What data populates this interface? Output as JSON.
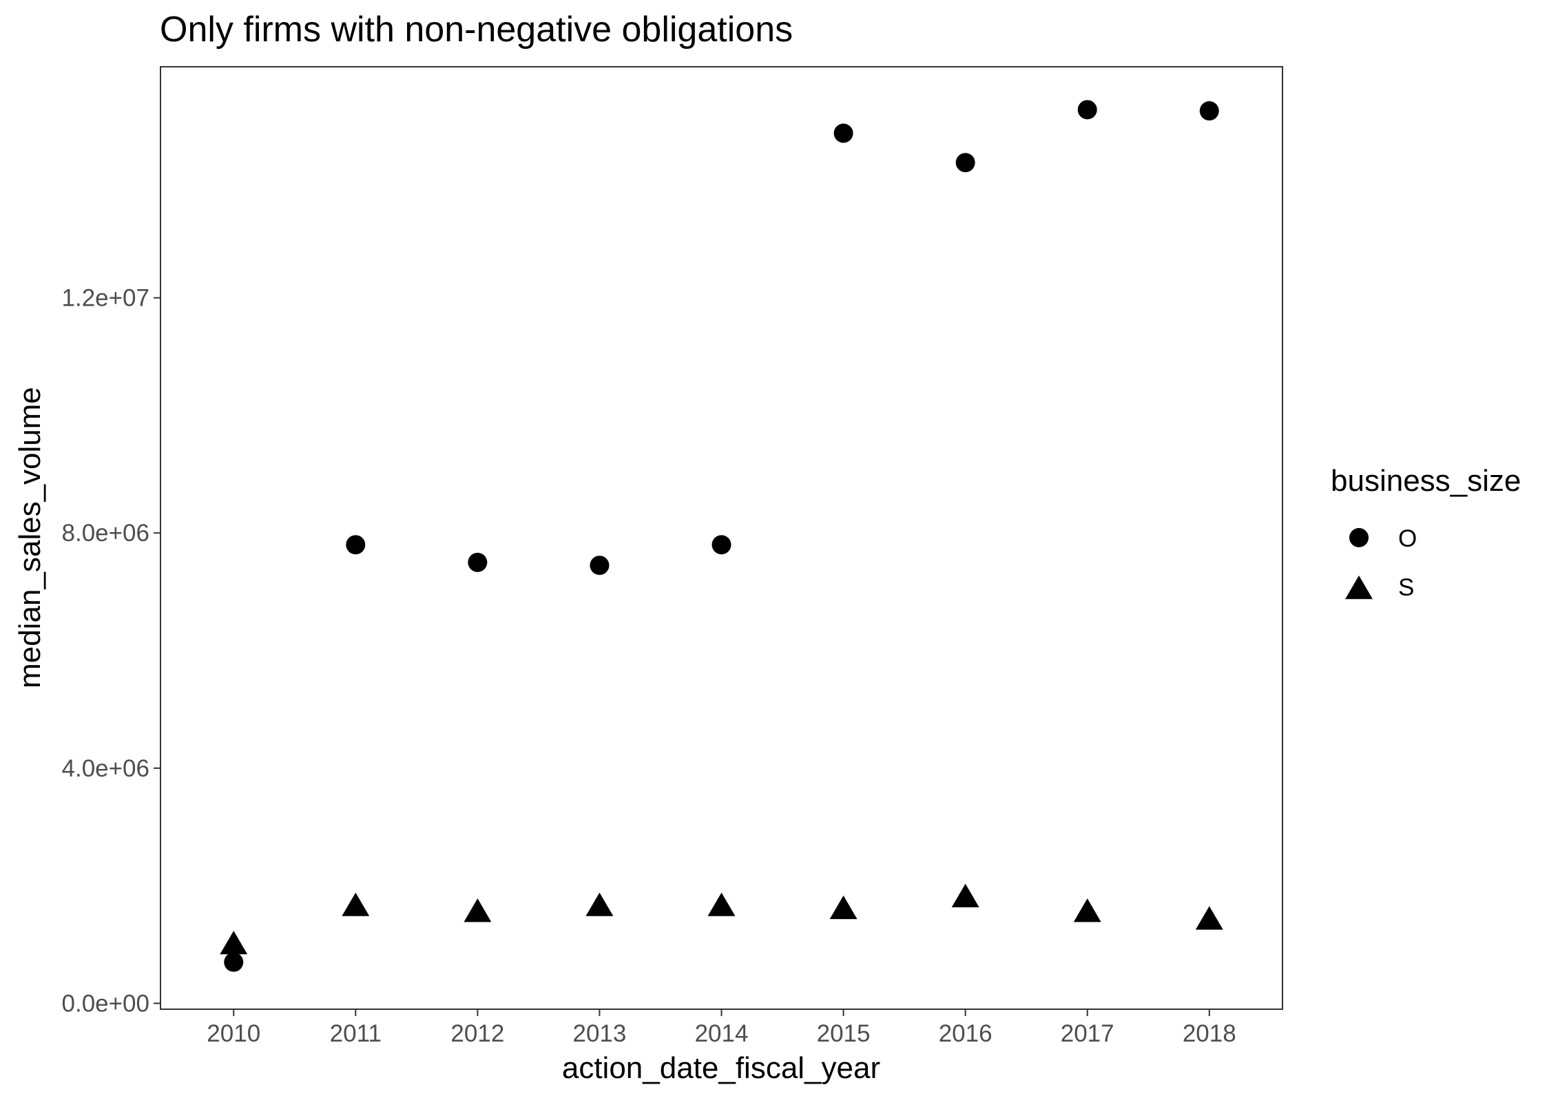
{
  "chart_data": {
    "type": "scatter",
    "title": "Only firms with non-negative obligations",
    "xlabel": "action_date_fiscal_year",
    "ylabel": "median_sales_volume",
    "x": [
      2010,
      2011,
      2012,
      2013,
      2014,
      2015,
      2016,
      2017,
      2018
    ],
    "x_tick_labels": [
      "2010",
      "2011",
      "2012",
      "2013",
      "2014",
      "2015",
      "2016",
      "2017",
      "2018"
    ],
    "xlim": [
      2009.4,
      2018.6
    ],
    "ylim": [
      -100000,
      15930000
    ],
    "y_ticks": [
      0,
      4000000,
      8000000,
      12000000
    ],
    "y_tick_labels": [
      "0.0e+00",
      "4.0e+06",
      "8.0e+06",
      "1.2e+07"
    ],
    "grid": false,
    "legend": {
      "title": "business_size",
      "position": "right",
      "entries": [
        {
          "label": "O",
          "shape": "circle"
        },
        {
          "label": "S",
          "shape": "triangle"
        }
      ]
    },
    "series": [
      {
        "name": "O",
        "shape": "circle",
        "color": "#000000",
        "values": [
          700000,
          7800000,
          7500000,
          7450000,
          7800000,
          14800000,
          14300000,
          15200000,
          15180000
        ]
      },
      {
        "name": "S",
        "shape": "triangle",
        "color": "#000000",
        "values": [
          1000000,
          1650000,
          1550000,
          1650000,
          1650000,
          1600000,
          1800000,
          1550000,
          1420000
        ]
      }
    ]
  }
}
